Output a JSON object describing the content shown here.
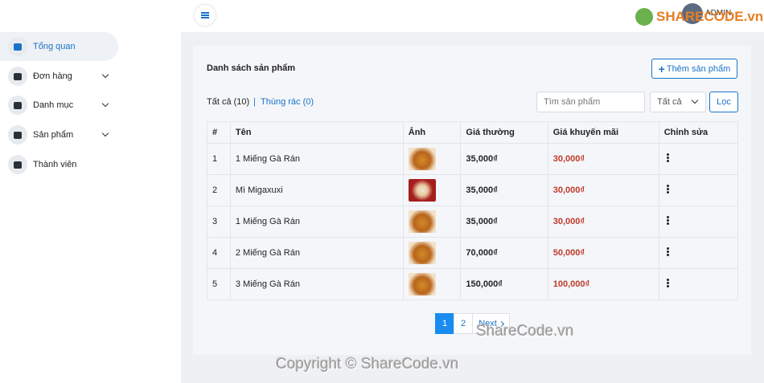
{
  "sidebar": {
    "items": [
      "Tổng quan",
      "Đơn hàng",
      "Danh mục",
      "Sản phẩm",
      "Thành viên"
    ]
  },
  "header": {
    "user": "ADMIN",
    "logo": "SHARECODE.vn"
  },
  "card": {
    "title": "Danh sách sản phẩm",
    "add_button": "Thêm sản phẩm",
    "tab_all": "Tất cả (10)",
    "tab_separator": "|",
    "tab_trash": "Thùng rác (0)",
    "search_placeholder": "Tìm sản phẩm",
    "filter": "Tất cả",
    "filter_button": "Lọc"
  },
  "table": {
    "headers": [
      "#",
      "Tên",
      "Ảnh",
      "Giá thường",
      "Giá khuyến mãi",
      "Chỉnh sửa"
    ],
    "rows": [
      [
        "1",
        "1 Miếng Gà Rán",
        "35,000₫",
        "30,000₫"
      ],
      [
        "2",
        "Mì Migaxuxi",
        "35,000₫",
        "30,000₫"
      ],
      [
        "3",
        "1 Miếng Gà Rán",
        "35,000₫",
        "30,000₫"
      ],
      [
        "4",
        "2 Miếng Gà Rán",
        "70,000₫",
        "50,000₫"
      ],
      [
        "5",
        "3 Miếng Gà Rán",
        "150,000₫",
        "100,000₫"
      ]
    ]
  },
  "pagination": [
    "1",
    "2",
    "Next"
  ],
  "watermarks": [
    "ShareCode.vn",
    "Copyright © ShareCode.vn"
  ]
}
